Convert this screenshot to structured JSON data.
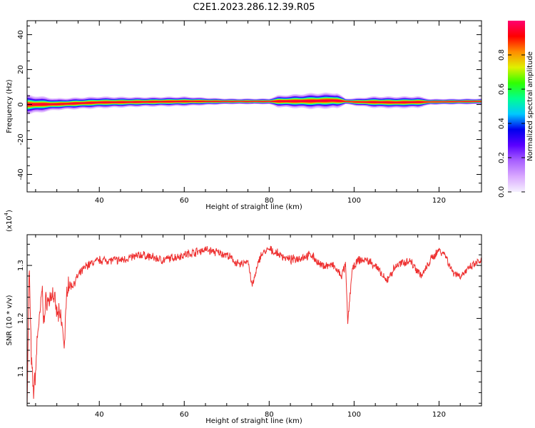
{
  "title": "C2E1.2023.286.12.39.R05",
  "colors": {
    "axis": "#000000",
    "snr_line": "#ee3030",
    "colormap": [
      "#f5f0ff",
      "#d9a8ff",
      "#a860ff",
      "#5a00ff",
      "#0000ee",
      "#00c8ff",
      "#00ff90",
      "#30ff00",
      "#e0f000",
      "#ff8c00",
      "#ff0000",
      "#ff0070"
    ]
  },
  "chart_data": [
    {
      "type": "heatmap",
      "title": "",
      "xlabel": "Height of straight line (km)",
      "ylabel": "Frequency (Hz)",
      "xlim": [
        23,
        130
      ],
      "ylim": [
        -50,
        48
      ],
      "xticks": [
        40,
        60,
        80,
        100,
        120
      ],
      "yticks": [
        -40,
        -20,
        0,
        20,
        40
      ],
      "colorbar": {
        "label": "Normalized spectral amplitude",
        "range": [
          0,
          1
        ],
        "ticks": [
          "0.0",
          "0.2",
          "0.4",
          "0.6",
          "0.8"
        ]
      },
      "ridge_frequency_hz": [
        [
          23,
          0
        ],
        [
          30,
          0.2
        ],
        [
          40,
          1.2
        ],
        [
          60,
          1.8
        ],
        [
          80,
          1.8
        ],
        [
          90,
          2.0
        ],
        [
          95,
          2.3
        ],
        [
          100,
          1.5
        ],
        [
          110,
          1.2
        ],
        [
          120,
          1.6
        ],
        [
          130,
          1.8
        ]
      ],
      "band_halfwidth_hz": [
        [
          23,
          5
        ],
        [
          30,
          3
        ],
        [
          40,
          3
        ],
        [
          50,
          2.5
        ],
        [
          60,
          2.5
        ],
        [
          70,
          1.5
        ],
        [
          80,
          1.5
        ],
        [
          82,
          3
        ],
        [
          90,
          4
        ],
        [
          96,
          4
        ],
        [
          98,
          1.5
        ],
        [
          105,
          3
        ],
        [
          115,
          3
        ],
        [
          118,
          1.5
        ],
        [
          130,
          1.5
        ]
      ]
    },
    {
      "type": "line",
      "title": "",
      "xlabel": "Height of straight line (km)",
      "ylabel": "SNR (10 * v/v)",
      "y_multiplier_label": "(x10",
      "y_multiplier_exp": "4",
      "xlim": [
        23,
        130
      ],
      "ylim": [
        1.035,
        1.358
      ],
      "xticks": [
        40,
        60,
        80,
        100,
        120
      ],
      "yticks": [
        1.1,
        1.2,
        1.3
      ],
      "series": [
        {
          "x": [
            23.0,
            23.5,
            24.0,
            24.5,
            25.0,
            25.5,
            26.0,
            26.5,
            27.0,
            27.5,
            28.0,
            29.0,
            30.0,
            31.0,
            31.8,
            32.5,
            33.5,
            35.0,
            37.0,
            40.0,
            45.0,
            50.0,
            55.0,
            60.0,
            65.0,
            70.0,
            73.0,
            75.0,
            76.0,
            77.0,
            78.0,
            80.0,
            85.0,
            90.0,
            92.0,
            95.0,
            97.0,
            98.0,
            98.5,
            99.5,
            101.0,
            103.0,
            105.0,
            107.5,
            110.0,
            113.0,
            116.0,
            118.0,
            120.0,
            121.5,
            123.0,
            125.0,
            128.0,
            130.0
          ],
          "values": [
            1.04,
            1.3,
            1.12,
            1.06,
            1.1,
            1.18,
            1.2,
            1.26,
            1.19,
            1.24,
            1.23,
            1.25,
            1.21,
            1.2,
            1.15,
            1.27,
            1.26,
            1.28,
            1.3,
            1.31,
            1.31,
            1.32,
            1.31,
            1.32,
            1.33,
            1.32,
            1.3,
            1.31,
            1.26,
            1.29,
            1.32,
            1.33,
            1.31,
            1.32,
            1.3,
            1.3,
            1.28,
            1.3,
            1.19,
            1.29,
            1.31,
            1.31,
            1.3,
            1.27,
            1.3,
            1.31,
            1.28,
            1.31,
            1.33,
            1.32,
            1.29,
            1.28,
            1.3,
            1.31
          ]
        }
      ]
    }
  ]
}
